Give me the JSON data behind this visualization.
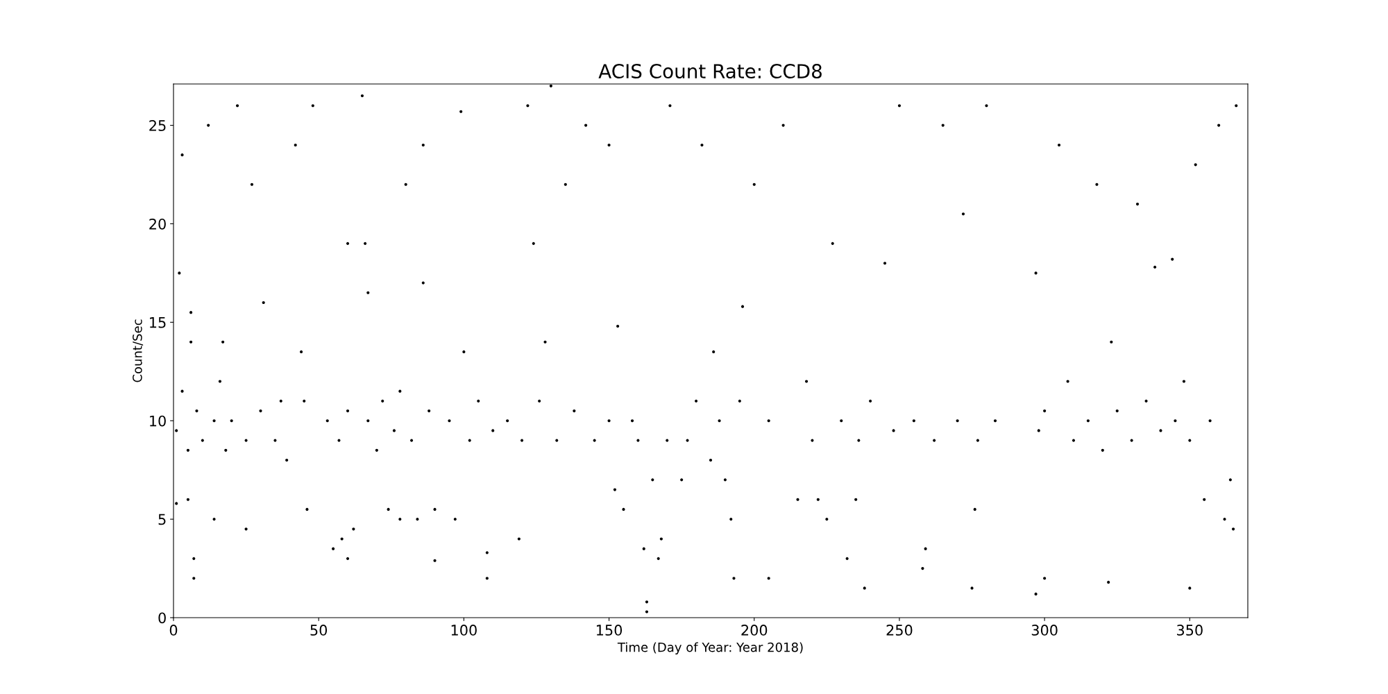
{
  "chart_data": {
    "type": "scatter",
    "title": "ACIS Count Rate: CCD8",
    "xlabel": "Time (Day of Year: Year 2018)",
    "ylabel": "Count/Sec",
    "xlim": [
      0,
      370
    ],
    "ylim": [
      0,
      27.1
    ],
    "xticks": [
      0,
      50,
      100,
      150,
      200,
      250,
      300,
      350
    ],
    "yticks": [
      0,
      5,
      10,
      15,
      20,
      25
    ],
    "grid": false,
    "legend": false,
    "marker": "circle",
    "series": [
      {
        "color": "#000000",
        "x": [
          1,
          1,
          2,
          3,
          3,
          5,
          5,
          6,
          6,
          7,
          7,
          8,
          10,
          12,
          14,
          14,
          16,
          17,
          18,
          20,
          22,
          25,
          25,
          27,
          30,
          31,
          35,
          37,
          39,
          42,
          44,
          45,
          46,
          48,
          53,
          55,
          57,
          58,
          60,
          60,
          60,
          62,
          65,
          66,
          67,
          67,
          70,
          72,
          74,
          76,
          78,
          78,
          80,
          82,
          84,
          86,
          86,
          88,
          90,
          90,
          95,
          97,
          99,
          100,
          102,
          105,
          108,
          108,
          110,
          115,
          119,
          120,
          122,
          124,
          126,
          128,
          130,
          132,
          135,
          138,
          142,
          145,
          150,
          150,
          152,
          153,
          155,
          158,
          160,
          162,
          163,
          163,
          165,
          167,
          168,
          170,
          171,
          175,
          177,
          180,
          182,
          185,
          186,
          188,
          190,
          192,
          193,
          195,
          196,
          200,
          205,
          205,
          210,
          215,
          218,
          220,
          222,
          225,
          227,
          230,
          232,
          235,
          236,
          238,
          240,
          245,
          248,
          250,
          255,
          258,
          259,
          262,
          265,
          270,
          272,
          275,
          276,
          277,
          280,
          283,
          297,
          297,
          298,
          300,
          300,
          305,
          308,
          310,
          315,
          318,
          320,
          322,
          323,
          325,
          330,
          332,
          335,
          338,
          340,
          344,
          345,
          348,
          350,
          350,
          352,
          355,
          357,
          360,
          362,
          364,
          365,
          366
        ],
        "values": [
          9.5,
          5.8,
          17.5,
          11.5,
          23.5,
          8.5,
          6,
          14,
          15.5,
          3,
          2,
          10.5,
          9,
          25,
          10,
          5,
          12,
          14,
          8.5,
          10,
          26,
          9,
          4.5,
          22,
          10.5,
          16,
          9,
          11,
          8,
          24,
          13.5,
          11,
          5.5,
          26,
          10,
          3.5,
          9,
          4,
          19,
          10.5,
          3,
          4.5,
          26.5,
          19,
          16.5,
          10,
          8.5,
          11,
          5.5,
          9.5,
          11.5,
          5,
          22,
          9,
          5,
          17,
          24,
          10.5,
          5.5,
          2.9,
          10,
          5,
          25.7,
          13.5,
          9,
          11,
          2,
          3.3,
          9.5,
          10,
          4,
          9,
          26,
          19,
          11,
          14,
          27,
          9,
          22,
          10.5,
          25,
          9,
          24,
          10,
          6.5,
          14.8,
          5.5,
          10,
          9,
          3.5,
          0.3,
          0.8,
          7,
          3,
          4,
          9,
          26,
          7,
          9,
          11,
          24,
          8,
          13.5,
          10,
          7,
          5,
          2,
          11,
          15.8,
          22,
          2,
          10,
          25,
          6,
          12,
          9,
          6,
          5,
          19,
          10,
          3,
          6,
          9,
          1.5,
          11,
          18,
          9.5,
          26,
          10,
          2.5,
          3.5,
          9,
          25,
          10,
          20.5,
          1.5,
          5.5,
          9,
          26,
          10,
          1.2,
          17.5,
          9.5,
          10.5,
          2,
          24,
          12,
          9,
          10,
          22,
          8.5,
          1.8,
          14,
          10.5,
          9,
          21,
          11,
          17.8,
          9.5,
          18.2,
          10,
          12,
          1.5,
          9,
          23,
          6,
          10,
          25,
          5,
          7,
          4.5,
          26
        ]
      }
    ]
  }
}
